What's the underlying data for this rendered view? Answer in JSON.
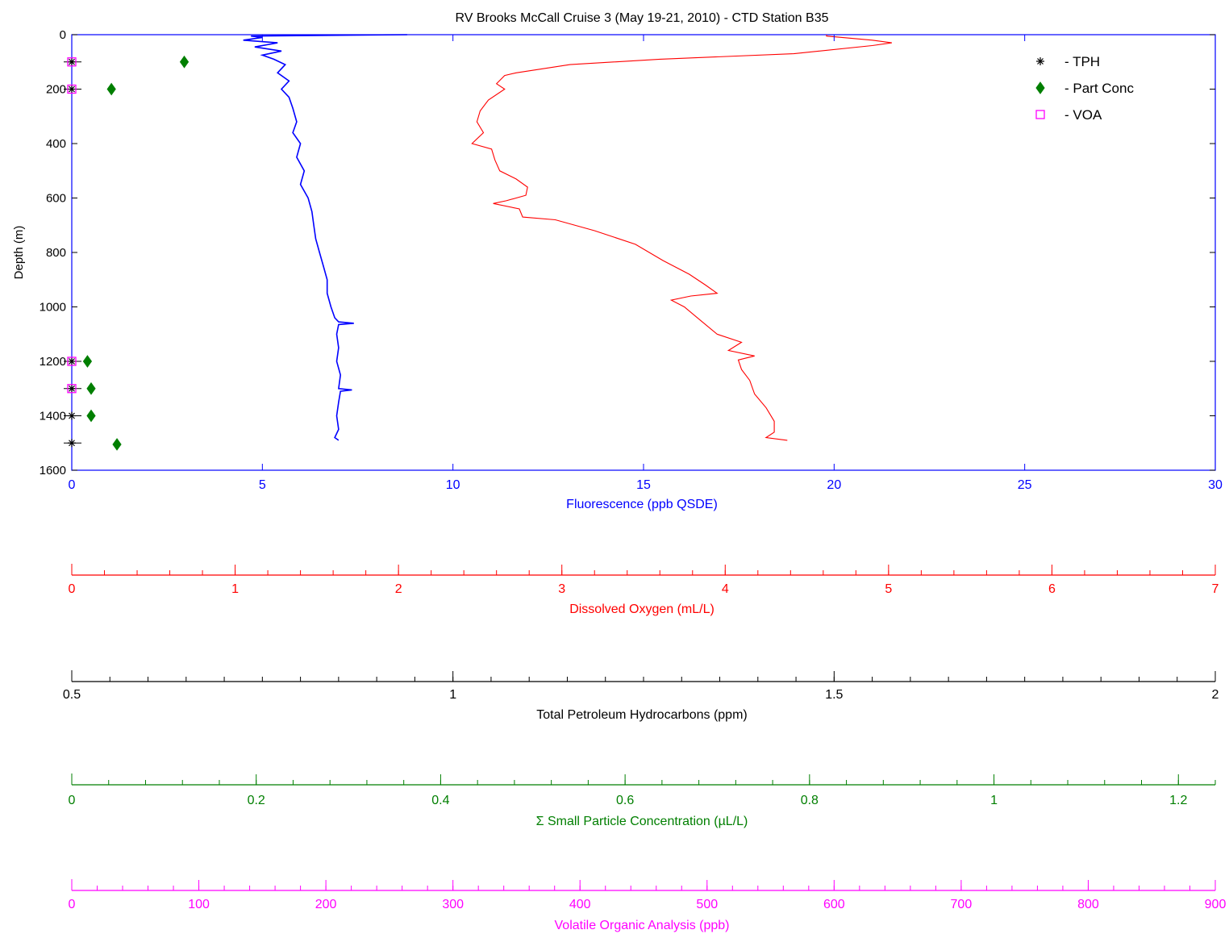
{
  "chart_data": {
    "type": "line",
    "title": "RV Brooks McCall Cruise 3 (May 19-21, 2010) - CTD Station B35",
    "ylabel": "Depth (m)",
    "y_inverted": true,
    "ylim": [
      0,
      1600
    ],
    "y_ticks": [
      0,
      200,
      400,
      600,
      800,
      1000,
      1200,
      1400,
      1600
    ],
    "colors": {
      "fluorescence": "#0000ff",
      "oxygen": "#ff0000",
      "tph": "#000000",
      "particles": "#007f00",
      "voa": "#ff00ff"
    },
    "axes": [
      {
        "key": "fluorescence",
        "label": "Fluorescence (ppb QSDE)",
        "range": [
          0,
          30
        ],
        "major": 5,
        "minor": 0,
        "tick_labels": [
          "0",
          "5",
          "10",
          "15",
          "20",
          "25",
          "30"
        ]
      },
      {
        "key": "oxygen",
        "label": "Dissolved Oxygen (mL/L)",
        "range": [
          0,
          7
        ],
        "major": 1,
        "minor": 0.2,
        "tick_labels": [
          "0",
          "1",
          "2",
          "3",
          "4",
          "5",
          "6",
          "7"
        ]
      },
      {
        "key": "tph",
        "label": "Total Petroleum Hydrocarbons (ppm)",
        "range": [
          0.5,
          2
        ],
        "major": 0.5,
        "minor": 0.05,
        "tick_labels": [
          "0.5",
          "1",
          "1.5",
          "2"
        ]
      },
      {
        "key": "particles",
        "label": "Σ Small Particle Concentration (µL/L)",
        "range": [
          0,
          1.24
        ],
        "major": 0.2,
        "minor": 0.04,
        "tick_labels": [
          "0",
          "0.2",
          "0.4",
          "0.6",
          "0.8",
          "1",
          "1.2"
        ]
      },
      {
        "key": "voa",
        "label": "Volatile Organic Analysis (ppb)",
        "range": [
          0,
          900
        ],
        "major": 100,
        "minor": 20,
        "tick_labels": [
          "0",
          "100",
          "200",
          "300",
          "400",
          "500",
          "600",
          "700",
          "800",
          "900"
        ]
      }
    ],
    "legend": {
      "placement": "top-right",
      "entries": [
        {
          "label": "- TPH",
          "marker": "asterisk",
          "series": "tph"
        },
        {
          "label": "- Part Conc",
          "marker": "diamond",
          "series": "particles"
        },
        {
          "label": "- VOA",
          "marker": "square",
          "series": "voa"
        }
      ]
    },
    "series": [
      {
        "key": "fluorescence",
        "type": "line",
        "points": [
          [
            8.8,
            0
          ],
          [
            4.7,
            5
          ],
          [
            5.0,
            10
          ],
          [
            4.5,
            20
          ],
          [
            5.4,
            30
          ],
          [
            4.8,
            45
          ],
          [
            5.5,
            60
          ],
          [
            5.0,
            75
          ],
          [
            5.3,
            90
          ],
          [
            5.6,
            110
          ],
          [
            5.4,
            140
          ],
          [
            5.7,
            170
          ],
          [
            5.5,
            200
          ],
          [
            5.7,
            230
          ],
          [
            5.8,
            270
          ],
          [
            5.9,
            320
          ],
          [
            5.8,
            360
          ],
          [
            6.0,
            400
          ],
          [
            5.9,
            450
          ],
          [
            6.1,
            500
          ],
          [
            6.0,
            550
          ],
          [
            6.2,
            600
          ],
          [
            6.3,
            650
          ],
          [
            6.35,
            700
          ],
          [
            6.4,
            750
          ],
          [
            6.5,
            800
          ],
          [
            6.6,
            850
          ],
          [
            6.7,
            900
          ],
          [
            6.7,
            950
          ],
          [
            6.8,
            1000
          ],
          [
            6.9,
            1040
          ],
          [
            7.0,
            1055
          ],
          [
            7.4,
            1060
          ],
          [
            7.0,
            1065
          ],
          [
            6.95,
            1100
          ],
          [
            7.0,
            1150
          ],
          [
            6.95,
            1200
          ],
          [
            7.05,
            1250
          ],
          [
            7.0,
            1300
          ],
          [
            7.35,
            1305
          ],
          [
            7.05,
            1310
          ],
          [
            7.0,
            1350
          ],
          [
            6.95,
            1400
          ],
          [
            7.0,
            1450
          ],
          [
            6.9,
            1480
          ],
          [
            7.0,
            1490
          ]
        ]
      },
      {
        "key": "oxygen",
        "type": "line",
        "points": [
          [
            4.62,
            0
          ],
          [
            4.62,
            5
          ],
          [
            4.9,
            20
          ],
          [
            5.02,
            30
          ],
          [
            4.9,
            40
          ],
          [
            4.42,
            70
          ],
          [
            3.6,
            90
          ],
          [
            3.05,
            110
          ],
          [
            2.72,
            140
          ],
          [
            2.65,
            150
          ],
          [
            2.6,
            180
          ],
          [
            2.65,
            200
          ],
          [
            2.55,
            240
          ],
          [
            2.5,
            280
          ],
          [
            2.48,
            320
          ],
          [
            2.52,
            360
          ],
          [
            2.45,
            400
          ],
          [
            2.57,
            420
          ],
          [
            2.59,
            460
          ],
          [
            2.62,
            500
          ],
          [
            2.72,
            530
          ],
          [
            2.79,
            560
          ],
          [
            2.78,
            590
          ],
          [
            2.66,
            610
          ],
          [
            2.58,
            620
          ],
          [
            2.74,
            640
          ],
          [
            2.76,
            670
          ],
          [
            2.96,
            680
          ],
          [
            3.2,
            720
          ],
          [
            3.45,
            770
          ],
          [
            3.62,
            830
          ],
          [
            3.78,
            880
          ],
          [
            3.88,
            920
          ],
          [
            3.95,
            950
          ],
          [
            3.79,
            960
          ],
          [
            3.67,
            975
          ],
          [
            3.75,
            1000
          ],
          [
            3.85,
            1050
          ],
          [
            3.95,
            1100
          ],
          [
            4.1,
            1130
          ],
          [
            4.02,
            1160
          ],
          [
            4.18,
            1180
          ],
          [
            4.08,
            1195
          ],
          [
            4.1,
            1230
          ],
          [
            4.15,
            1270
          ],
          [
            4.18,
            1320
          ],
          [
            4.25,
            1370
          ],
          [
            4.3,
            1420
          ],
          [
            4.3,
            1460
          ],
          [
            4.25,
            1480
          ],
          [
            4.38,
            1490
          ]
        ]
      },
      {
        "key": "tph",
        "type": "scatter",
        "marker": "asterisk",
        "points": [
          [
            0.5,
            100
          ],
          [
            0.5,
            200
          ],
          [
            0.5,
            1200
          ],
          [
            0.5,
            1300
          ],
          [
            0.5,
            1400
          ],
          [
            0.5,
            1500
          ]
        ]
      },
      {
        "key": "particles",
        "type": "scatter",
        "marker": "diamond",
        "points": [
          [
            0.122,
            100
          ],
          [
            0.043,
            200
          ],
          [
            0.017,
            1200
          ],
          [
            0.021,
            1300
          ],
          [
            0.021,
            1400
          ],
          [
            0.049,
            1505
          ]
        ]
      },
      {
        "key": "voa",
        "type": "scatter",
        "marker": "square",
        "points": [
          [
            0,
            100
          ],
          [
            0,
            200
          ],
          [
            0,
            1200
          ],
          [
            0,
            1300
          ]
        ]
      }
    ]
  }
}
